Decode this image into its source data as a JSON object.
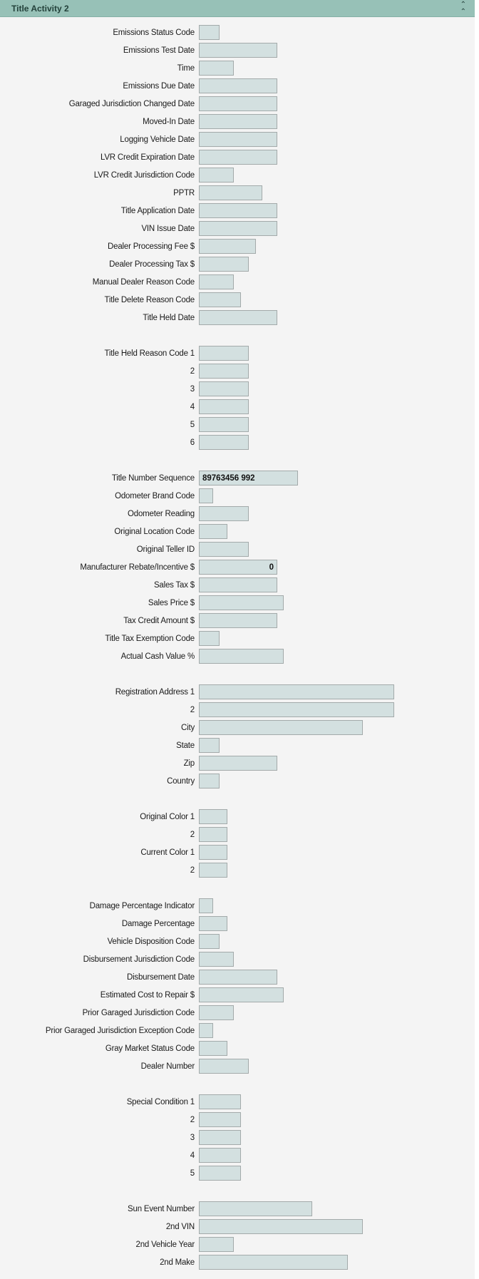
{
  "panel": {
    "title": "Title Activity 2",
    "collapse_icon": "double-chevron-up-icon"
  },
  "colors": {
    "header": "#97c1b7",
    "field": "#d3e0e0",
    "background": "#f4f4f4"
  },
  "rows": [
    {
      "label": "Emissions Status Code",
      "value": ""
    },
    {
      "label": "Emissions Test Date",
      "value": ""
    },
    {
      "label": "Time",
      "value": ""
    },
    {
      "label": "Emissions Due Date",
      "value": ""
    },
    {
      "label": "Garaged Jurisdiction Changed Date",
      "value": ""
    },
    {
      "label": "Moved-In Date",
      "value": ""
    },
    {
      "label": "Logging Vehicle Date",
      "value": ""
    },
    {
      "label": "LVR Credit Expiration Date",
      "value": ""
    },
    {
      "label": "LVR Credit Jurisdiction Code",
      "value": ""
    },
    {
      "label": "PPTR",
      "value": ""
    },
    {
      "label": "Title Application Date",
      "value": ""
    },
    {
      "label": "VIN Issue Date",
      "value": ""
    },
    {
      "label": "Dealer Processing Fee $",
      "value": ""
    },
    {
      "label": "Dealer Processing Tax $",
      "value": ""
    },
    {
      "label": "Manual Dealer Reason Code",
      "value": ""
    },
    {
      "label": "Title Delete Reason Code",
      "value": ""
    },
    {
      "label": "Title Held Date",
      "value": ""
    },
    null,
    {
      "label": "Title Held Reason Code 1",
      "value": ""
    },
    {
      "label": "2",
      "value": ""
    },
    {
      "label": "3",
      "value": ""
    },
    {
      "label": "4",
      "value": ""
    },
    {
      "label": "5",
      "value": ""
    },
    {
      "label": "6",
      "value": ""
    },
    null,
    {
      "label": "Title Number Sequence",
      "value": "89763456  992"
    },
    {
      "label": "Odometer Brand Code",
      "value": ""
    },
    {
      "label": "Odometer Reading",
      "value": ""
    },
    {
      "label": "Original Location Code",
      "value": ""
    },
    {
      "label": "Original Teller ID",
      "value": ""
    },
    {
      "label": "Manufacturer Rebate/Incentive $",
      "value": "0"
    },
    {
      "label": "Sales Tax $",
      "value": ""
    },
    {
      "label": "Sales Price $",
      "value": ""
    },
    {
      "label": "Tax Credit Amount $",
      "value": ""
    },
    {
      "label": "Title Tax Exemption Code",
      "value": ""
    },
    {
      "label": "Actual Cash Value %",
      "value": ""
    },
    null,
    {
      "label": "Registration Address 1",
      "value": ""
    },
    {
      "label": "2",
      "value": ""
    },
    {
      "label": "City",
      "value": ""
    },
    {
      "label": "State",
      "value": ""
    },
    {
      "label": "Zip",
      "value": ""
    },
    {
      "label": "Country",
      "value": ""
    },
    null,
    {
      "label": "Original Color 1",
      "value": ""
    },
    {
      "label": "2",
      "value": ""
    },
    {
      "label": "Current Color 1",
      "value": ""
    },
    {
      "label": "2",
      "value": ""
    },
    null,
    {
      "label": "Damage Percentage Indicator",
      "value": ""
    },
    {
      "label": "Damage Percentage",
      "value": ""
    },
    {
      "label": "Vehicle Disposition Code",
      "value": ""
    },
    {
      "label": "Disbursement Jurisdiction Code",
      "value": ""
    },
    {
      "label": "Disbursement Date",
      "value": ""
    },
    {
      "label": "Estimated Cost to Repair $",
      "value": ""
    },
    {
      "label": "Prior Garaged Jurisdiction Code",
      "value": ""
    },
    {
      "label": "Prior Garaged Jurisdiction Exception Code",
      "value": ""
    },
    {
      "label": "Gray Market Status Code",
      "value": ""
    },
    {
      "label": "Dealer Number",
      "value": ""
    },
    null,
    {
      "label": "Special Condition 1",
      "value": ""
    },
    {
      "label": "2",
      "value": ""
    },
    {
      "label": "3",
      "value": ""
    },
    {
      "label": "4",
      "value": ""
    },
    {
      "label": "5",
      "value": ""
    },
    null,
    {
      "label": "Sun Event Number",
      "value": ""
    },
    {
      "label": "2nd VIN",
      "value": ""
    },
    {
      "label": "2nd Vehicle Year",
      "value": ""
    },
    {
      "label": "2nd Make",
      "value": ""
    }
  ]
}
